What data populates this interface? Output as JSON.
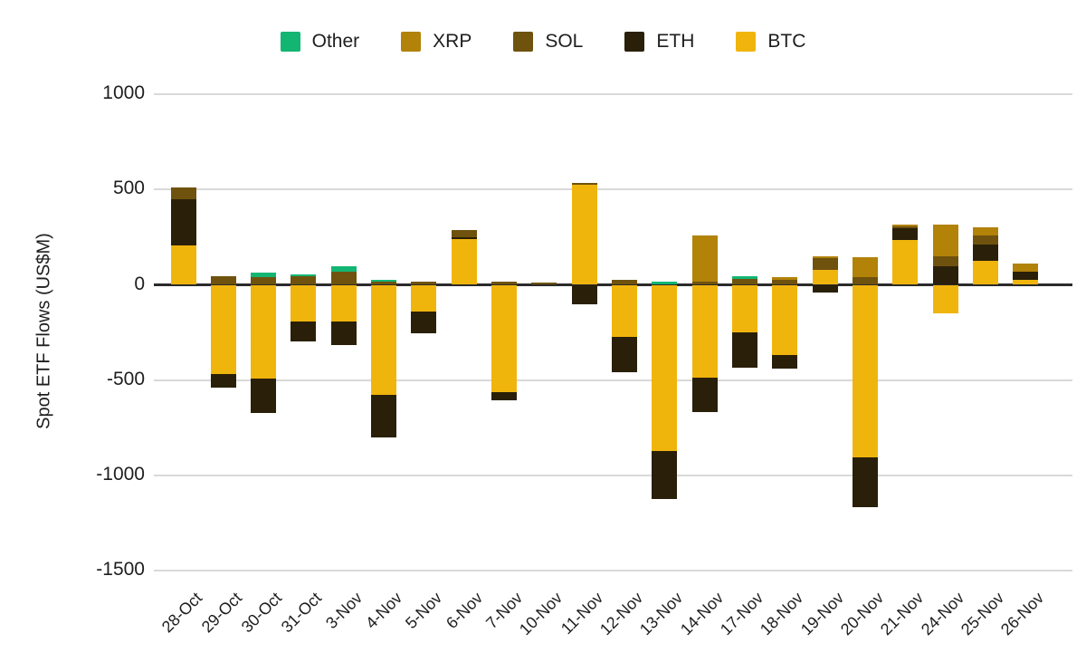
{
  "chart_data": {
    "type": "bar",
    "stacked": true,
    "title": "",
    "xlabel": "",
    "ylabel": "Spot ETF Flows (US$M)",
    "ylim": [
      -1500,
      1000
    ],
    "yticks": [
      1000,
      500,
      0,
      -500,
      -1000,
      -1500
    ],
    "grid": true,
    "legend_position": "top",
    "legend_order": [
      "Other",
      "XRP",
      "SOL",
      "ETH",
      "BTC"
    ],
    "stack_order": [
      "BTC",
      "ETH",
      "SOL",
      "XRP",
      "Other"
    ],
    "categories": [
      "28-Oct",
      "29-Oct",
      "30-Oct",
      "31-Oct",
      "3-Nov",
      "4-Nov",
      "5-Nov",
      "6-Nov",
      "7-Nov",
      "10-Nov",
      "11-Nov",
      "12-Nov",
      "13-Nov",
      "14-Nov",
      "17-Nov",
      "18-Nov",
      "19-Nov",
      "20-Nov",
      "21-Nov",
      "24-Nov",
      "25-Nov",
      "26-Nov"
    ],
    "series": [
      {
        "name": "BTC",
        "color": "#f0b50d",
        "values": [
          205,
          -470,
          -490,
          -190,
          -190,
          -575,
          -140,
          240,
          -565,
          0,
          525,
          -275,
          -870,
          -485,
          -250,
          -370,
          80,
          -905,
          235,
          -150,
          125,
          25
        ]
      },
      {
        "name": "ETH",
        "color": "#2a2009",
        "values": [
          245,
          -70,
          -180,
          -105,
          -125,
          -225,
          -115,
          10,
          -40,
          0,
          -100,
          -185,
          -255,
          -180,
          -185,
          -70,
          -40,
          -260,
          60,
          95,
          85,
          45
        ]
      },
      {
        "name": "SOL",
        "color": "#6f520e",
        "values": [
          60,
          45,
          40,
          45,
          70,
          15,
          15,
          35,
          15,
          10,
          10,
          25,
          0,
          15,
          30,
          25,
          60,
          40,
          10,
          55,
          50,
          0
        ]
      },
      {
        "name": "XRP",
        "color": "#b28209",
        "values": [
          0,
          0,
          0,
          0,
          0,
          0,
          0,
          0,
          0,
          0,
          0,
          0,
          0,
          245,
          0,
          15,
          10,
          105,
          10,
          165,
          40,
          40
        ]
      },
      {
        "name": "Other",
        "color": "#13b573",
        "values": [
          0,
          0,
          25,
          10,
          25,
          10,
          0,
          0,
          0,
          0,
          0,
          0,
          15,
          0,
          15,
          0,
          0,
          0,
          0,
          0,
          0,
          0
        ]
      }
    ],
    "colors": {
      "BTC": "#f0b50d",
      "ETH": "#2a2009",
      "SOL": "#6f520e",
      "XRP": "#b28209",
      "Other": "#13b573",
      "gridline": "#d9d9d9",
      "zero_line": "#2b2b2b",
      "text": "#1e1e1e"
    }
  }
}
